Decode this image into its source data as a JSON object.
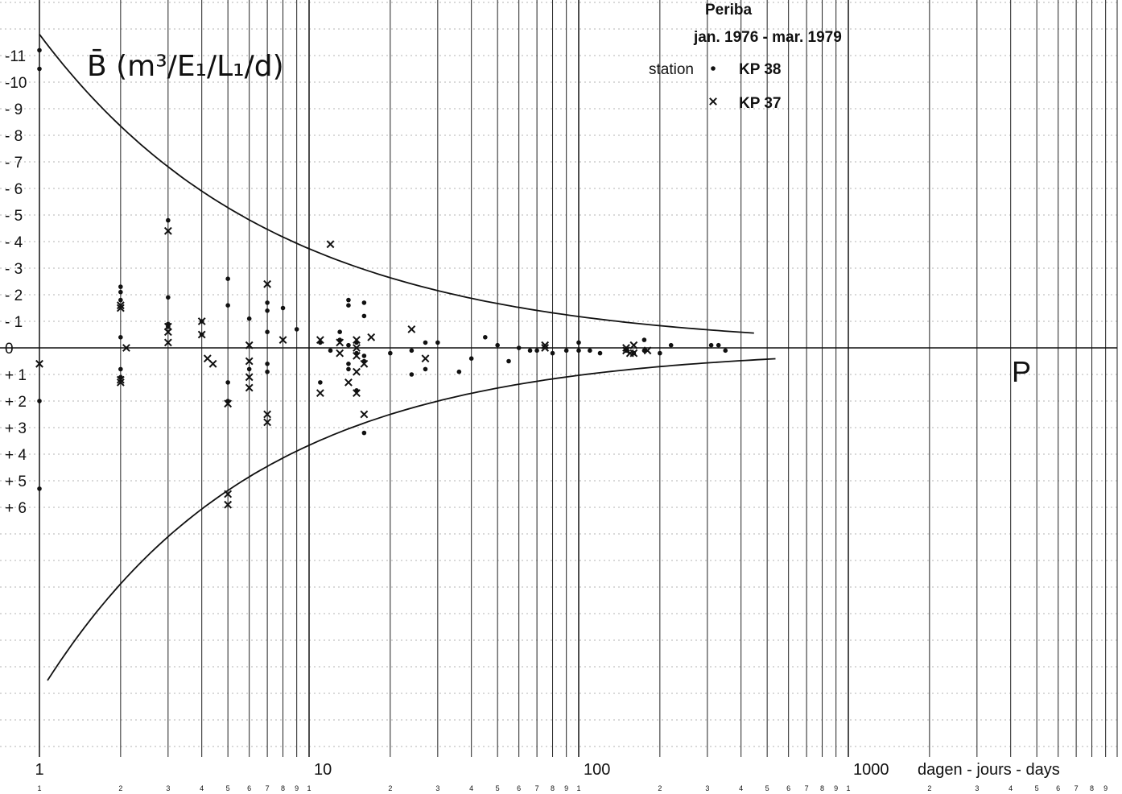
{
  "chart_data": {
    "type": "scatter",
    "title": "B̄ (m³/E₁/L₁/d)",
    "header_lines": [
      "Periba",
      "jan. 1976 - mar. 1979"
    ],
    "legend_title": "station",
    "legend_placement": "top-right",
    "xlabel": "dagen - jours - days",
    "x_scale": "log",
    "xlim": [
      1,
      10000
    ],
    "ylim": [
      -12,
      12
    ],
    "y_orientation": "negative values upward",
    "grid": true,
    "x_decade_labels": [
      "1",
      "10",
      "100",
      "1000"
    ],
    "x_minor_labels": [
      "1",
      "2",
      "3",
      "4",
      "5",
      "6",
      "7",
      "8",
      "9"
    ],
    "y_tick_labels": [
      {
        "label": "-11",
        "value": -11
      },
      {
        "label": "-10",
        "value": -10
      },
      {
        "label": "- 9",
        "value": -9
      },
      {
        "label": "- 8",
        "value": -8
      },
      {
        "label": "- 7",
        "value": -7
      },
      {
        "label": "- 6",
        "value": -6
      },
      {
        "label": "- 5",
        "value": -5
      },
      {
        "label": "- 4",
        "value": -4
      },
      {
        "label": "- 3",
        "value": -3
      },
      {
        "label": "- 2",
        "value": -2
      },
      {
        "label": "- 1",
        "value": -1
      },
      {
        "label": "0",
        "value": 0
      },
      {
        "label": "+ 1",
        "value": 1
      },
      {
        "label": "+ 2",
        "value": 2
      },
      {
        "label": "+ 3",
        "value": 3
      },
      {
        "label": "+ 4",
        "value": 4
      },
      {
        "label": "+ 5",
        "value": 5
      },
      {
        "label": "+ 6",
        "value": 6
      }
    ],
    "annotations": [
      {
        "text": "P",
        "x": 3500,
        "y": 0.9
      }
    ],
    "series": [
      {
        "name": "KP 38",
        "marker": "dot",
        "points": [
          [
            1,
            -11.2
          ],
          [
            1,
            -10.5
          ],
          [
            1,
            2
          ],
          [
            1,
            5.3
          ],
          [
            2,
            -2.3
          ],
          [
            2,
            -2.1
          ],
          [
            2,
            -1.8
          ],
          [
            2,
            -0.4
          ],
          [
            2,
            0.8
          ],
          [
            2,
            1.1
          ],
          [
            3,
            -4.8
          ],
          [
            3,
            -1.9
          ],
          [
            3,
            -0.9
          ],
          [
            3,
            -0.8
          ],
          [
            4,
            -1.0
          ],
          [
            4,
            -0.5
          ],
          [
            5,
            -2.6
          ],
          [
            5,
            -1.6
          ],
          [
            5,
            1.3
          ],
          [
            5,
            2.0
          ],
          [
            6,
            -1.1
          ],
          [
            6,
            0.8
          ],
          [
            7,
            -1.7
          ],
          [
            7,
            -1.4
          ],
          [
            7,
            -0.6
          ],
          [
            7,
            0.6
          ],
          [
            7,
            0.9
          ],
          [
            8,
            -1.5
          ],
          [
            9,
            -0.7
          ],
          [
            11,
            1.3
          ],
          [
            11,
            -0.2
          ],
          [
            12,
            0.1
          ],
          [
            13,
            -0.6
          ],
          [
            13,
            -0.3
          ],
          [
            14,
            -1.8
          ],
          [
            14,
            -1.6
          ],
          [
            14,
            -0.1
          ],
          [
            14,
            0.6
          ],
          [
            14,
            0.8
          ],
          [
            15,
            0.2
          ],
          [
            15,
            -0.2
          ],
          [
            15,
            1.6
          ],
          [
            16,
            -1.7
          ],
          [
            16,
            -1.2
          ],
          [
            16,
            0.5
          ],
          [
            16,
            0.3
          ],
          [
            16,
            3.2
          ],
          [
            20,
            0.2
          ],
          [
            24,
            0.1
          ],
          [
            24,
            1.0
          ],
          [
            27,
            -0.2
          ],
          [
            27,
            0.8
          ],
          [
            30,
            -0.2
          ],
          [
            36,
            0.9
          ],
          [
            40,
            0.4
          ],
          [
            45,
            -0.4
          ],
          [
            50,
            -0.1
          ],
          [
            55,
            0.5
          ],
          [
            60,
            0.0
          ],
          [
            66,
            0.1
          ],
          [
            70,
            0.1
          ],
          [
            80,
            0.2
          ],
          [
            90,
            0.1
          ],
          [
            100,
            -0.2
          ],
          [
            100,
            0.1
          ],
          [
            110,
            0.1
          ],
          [
            120,
            0.2
          ],
          [
            150,
            0.1
          ],
          [
            160,
            0.2
          ],
          [
            175,
            -0.3
          ],
          [
            175,
            0.1
          ],
          [
            200,
            0.2
          ],
          [
            220,
            -0.1
          ],
          [
            310,
            -0.1
          ],
          [
            330,
            -0.1
          ],
          [
            350,
            0.1
          ]
        ]
      },
      {
        "name": "KP 37",
        "marker": "x",
        "points": [
          [
            1,
            0.6
          ],
          [
            2,
            -1.6
          ],
          [
            2,
            -1.5
          ],
          [
            2,
            1.2
          ],
          [
            2,
            1.3
          ],
          [
            2.1,
            0.0
          ],
          [
            3,
            -4.4
          ],
          [
            3,
            -0.8
          ],
          [
            3,
            -0.6
          ],
          [
            3,
            -0.2
          ],
          [
            4,
            -1.0
          ],
          [
            4,
            -0.5
          ],
          [
            4.2,
            0.4
          ],
          [
            4.4,
            0.6
          ],
          [
            5,
            2.1
          ],
          [
            5,
            5.5
          ],
          [
            5,
            5.9
          ],
          [
            6,
            -0.1
          ],
          [
            6,
            0.5
          ],
          [
            6,
            1.1
          ],
          [
            6,
            1.5
          ],
          [
            7,
            -2.4
          ],
          [
            7,
            2.5
          ],
          [
            7,
            2.8
          ],
          [
            8,
            -0.3
          ],
          [
            11,
            -0.3
          ],
          [
            11,
            1.7
          ],
          [
            12,
            -3.9
          ],
          [
            13,
            -0.2
          ],
          [
            13,
            0.2
          ],
          [
            14,
            1.3
          ],
          [
            15,
            -0.3
          ],
          [
            15,
            0.0
          ],
          [
            15,
            0.3
          ],
          [
            15,
            0.9
          ],
          [
            15,
            1.7
          ],
          [
            16,
            0.6
          ],
          [
            16,
            2.5
          ],
          [
            17,
            -0.4
          ],
          [
            24,
            -0.7
          ],
          [
            27,
            0.4
          ],
          [
            75,
            -0.1
          ],
          [
            75,
            0.0
          ],
          [
            150,
            0.0
          ],
          [
            150,
            0.1
          ],
          [
            155,
            0.2
          ],
          [
            160,
            -0.1
          ],
          [
            160,
            0.2
          ],
          [
            180,
            0.1
          ]
        ]
      }
    ]
  }
}
